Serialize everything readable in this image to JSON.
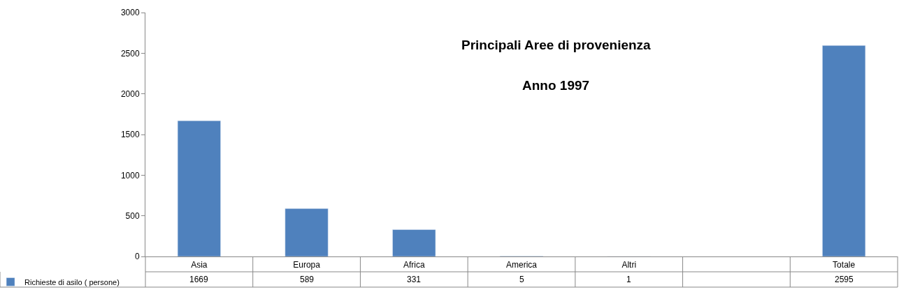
{
  "chart_data": {
    "type": "bar",
    "title": "Principali Aree di provenienza",
    "subtitle": "Anno 1997",
    "categories": [
      "Asia",
      "Europa",
      "Africa",
      "America",
      "Altri",
      null,
      "Totale"
    ],
    "series": [
      {
        "name": "Richieste di asilo ( persone)",
        "color": "#4f81bd",
        "values": [
          1669,
          589,
          331,
          5,
          1,
          null,
          2595
        ]
      }
    ],
    "ylim": [
      0,
      3000
    ],
    "yticks": [
      0,
      500,
      1000,
      1500,
      2000,
      2500,
      3000
    ],
    "grid": false,
    "legend": "bottom left",
    "data_labels": true
  }
}
